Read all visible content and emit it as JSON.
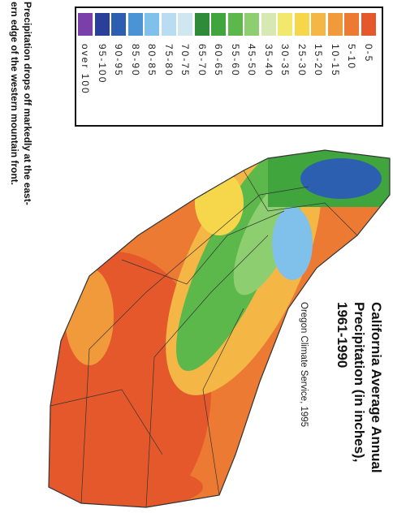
{
  "title": {
    "lines": [
      "California Average Annual",
      "Precipitation (in inches),",
      "1961-1990"
    ]
  },
  "source": "Oregon Climate Service, 1995",
  "caption": {
    "lines": [
      "Precipitation drops off markedly at the east-",
      "ern edge of the western mountain front."
    ]
  },
  "legend": {
    "items": [
      {
        "label": "0-5",
        "color": "#e4582b"
      },
      {
        "label": "5-10",
        "color": "#ec7a32"
      },
      {
        "label": "10-15",
        "color": "#f09a3c"
      },
      {
        "label": "15-20",
        "color": "#f4b746"
      },
      {
        "label": "25-30",
        "color": "#f6d64a"
      },
      {
        "label": "30-35",
        "color": "#f2e86c"
      },
      {
        "label": "35-40",
        "color": "#d8e8b2"
      },
      {
        "label": "45-50",
        "color": "#8dcf70"
      },
      {
        "label": "55-60",
        "color": "#5cb84a"
      },
      {
        "label": "60-65",
        "color": "#3fa53c"
      },
      {
        "label": "65-70",
        "color": "#2f8a3a"
      },
      {
        "label": "70-75",
        "color": "#cfe8f0"
      },
      {
        "label": "75-80",
        "color": "#b8dcf2"
      },
      {
        "label": "80-85",
        "color": "#7fc1ea"
      },
      {
        "label": "85-90",
        "color": "#4a94d6"
      },
      {
        "label": "90-95",
        "color": "#2c5fb0"
      },
      {
        "label": "95-100",
        "color": "#2a3f9a"
      },
      {
        "label": "over 100",
        "color": "#7a3fa8"
      }
    ]
  }
}
